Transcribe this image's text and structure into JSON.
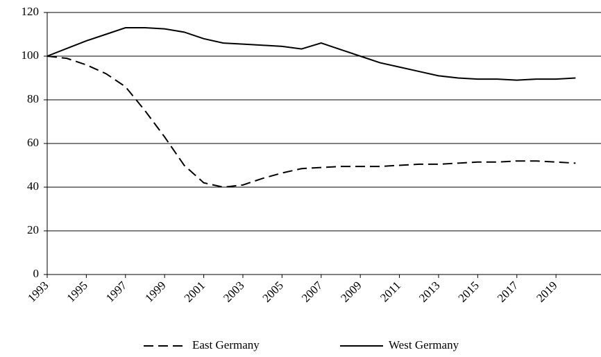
{
  "chart_data": {
    "type": "line",
    "x": [
      1993,
      1994,
      1995,
      1996,
      1997,
      1998,
      1999,
      2000,
      2001,
      2002,
      2003,
      2004,
      2005,
      2006,
      2007,
      2008,
      2009,
      2010,
      2011,
      2012,
      2013,
      2014,
      2015,
      2016,
      2017,
      2018,
      2019,
      2020
    ],
    "series": [
      {
        "name": "East Germany",
        "color": "#000000",
        "dash": "dashed",
        "values": [
          100,
          99,
          96,
          92,
          86,
          75,
          63,
          50,
          42,
          40,
          41,
          44,
          46.5,
          48.5,
          49,
          49.5,
          49.5,
          49.5,
          50,
          50.5,
          50.5,
          51,
          51.5,
          51.5,
          52,
          52,
          51.5,
          51
        ]
      },
      {
        "name": "West Germany",
        "color": "#000000",
        "dash": "solid",
        "values": [
          100,
          103.5,
          107,
          110,
          113,
          113,
          112.5,
          111,
          108,
          106,
          105.5,
          105,
          104.5,
          103.3,
          106,
          103,
          100,
          97,
          95,
          93,
          91,
          90,
          89.5,
          89.5,
          89,
          89.5,
          89.5,
          90
        ]
      }
    ],
    "xlim": [
      1993,
      2021.3
    ],
    "xticks": [
      1993,
      1995,
      1997,
      1999,
      2001,
      2003,
      2005,
      2007,
      2009,
      2011,
      2013,
      2015,
      2017,
      2019
    ],
    "ylim": [
      0,
      120
    ],
    "yticks": [
      0,
      20,
      40,
      60,
      80,
      100,
      120
    ],
    "grid": true,
    "legend": "bottom"
  }
}
